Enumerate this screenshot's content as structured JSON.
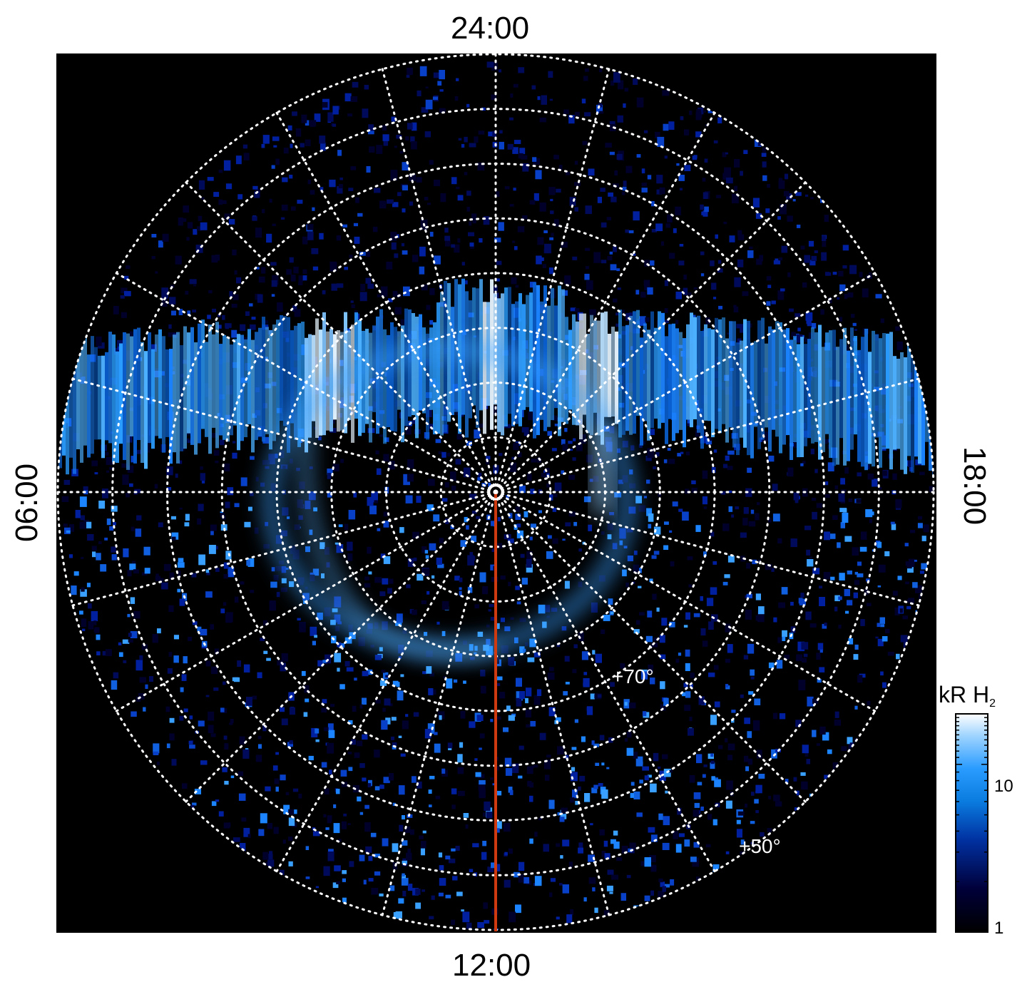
{
  "chart_data": {
    "type": "heatmap",
    "projection": "polar",
    "local_time_labels": {
      "top": "24:00",
      "bottom": "12:00",
      "left": "06:00",
      "right": "18:00"
    },
    "latitude_labels": [
      "+70°",
      "+50°"
    ],
    "latitude_circles_deg": [
      85,
      80,
      75,
      70,
      65,
      60,
      55,
      50
    ],
    "meridians_count": 24,
    "colorbar": {
      "title_main": "kR H",
      "title_sub": "2",
      "scale": "log",
      "range": [
        1,
        20
      ],
      "tick_labels": [
        "10",
        "1"
      ],
      "colors": [
        "#000000",
        "#00003a",
        "#0030a0",
        "#0a7ce0",
        "#2a9cff",
        "#9fd4ff",
        "#ffffff"
      ]
    },
    "grid": true,
    "reference_line_color": "#d03a10",
    "background": "#000000",
    "emission_color": "#1e8fff"
  }
}
